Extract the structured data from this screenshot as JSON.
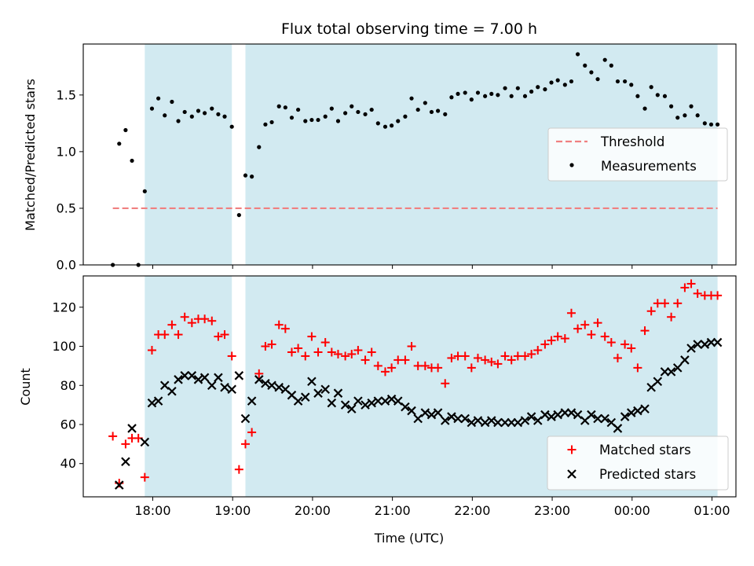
{
  "chart_data": {
    "title": "Flux total observing time = 7.00 h",
    "xlabel": "Time (UTC)",
    "x_unit": "hours (UTC clock, values past 24 are after midnight)",
    "x_range": [
      17.13,
      25.3
    ],
    "x_ticks": [
      {
        "value": 18,
        "label": "18:00"
      },
      {
        "value": 19,
        "label": "19:00"
      },
      {
        "value": 20,
        "label": "20:00"
      },
      {
        "value": 21,
        "label": "21:00"
      },
      {
        "value": 22,
        "label": "22:00"
      },
      {
        "value": 23,
        "label": "23:00"
      },
      {
        "value": 24,
        "label": "00:00"
      },
      {
        "value": 25,
        "label": "01:00"
      }
    ],
    "observing_windows": [
      [
        17.9,
        18.99
      ],
      [
        19.16,
        25.07
      ]
    ],
    "colors": {
      "window": "#add8e6",
      "threshold": "#f08080",
      "measurements": "#000000",
      "matched": "#ff0000",
      "predicted": "#000000"
    },
    "panels": [
      {
        "type": "scatter",
        "ylabel": "Matched/Predicted stars",
        "ylim": [
          0,
          1.95
        ],
        "y_ticks": [
          "0.0",
          "0.5",
          "1.0",
          "1.5"
        ],
        "legend_position": "center-right",
        "threshold": {
          "name": "Threshold",
          "value": 0.5,
          "x_range": [
            17.5,
            25.07
          ]
        },
        "series": [
          {
            "name": "Measurements",
            "marker": "dot",
            "x": [
              17.5,
              17.58,
              17.66,
              17.74,
              17.82,
              17.9,
              17.99,
              18.07,
              18.15,
              18.24,
              18.32,
              18.4,
              18.49,
              18.57,
              18.65,
              18.74,
              18.82,
              18.9,
              18.99,
              19.08,
              19.16,
              19.24,
              19.33,
              19.41,
              19.49,
              19.58,
              19.66,
              19.74,
              19.82,
              19.91,
              19.99,
              20.07,
              20.16,
              20.24,
              20.32,
              20.41,
              20.49,
              20.57,
              20.66,
              20.74,
              20.82,
              20.91,
              20.99,
              21.07,
              21.16,
              21.24,
              21.32,
              21.41,
              21.49,
              21.57,
              21.66,
              21.74,
              21.82,
              21.91,
              21.99,
              22.07,
              22.16,
              22.24,
              22.32,
              22.41,
              22.49,
              22.57,
              22.66,
              22.74,
              22.82,
              22.91,
              22.99,
              23.07,
              23.16,
              23.24,
              23.32,
              23.41,
              23.49,
              23.57,
              23.66,
              23.74,
              23.82,
              23.91,
              23.99,
              24.07,
              24.16,
              24.24,
              24.32,
              24.41,
              24.49,
              24.57,
              24.66,
              24.74,
              24.82,
              24.91,
              24.99,
              25.07
            ],
            "y": [
              0.0,
              1.07,
              1.19,
              0.92,
              0.0,
              0.65,
              1.38,
              1.47,
              1.32,
              1.44,
              1.27,
              1.35,
              1.31,
              1.36,
              1.34,
              1.38,
              1.33,
              1.31,
              1.22,
              0.44,
              0.79,
              0.78,
              1.04,
              1.24,
              1.26,
              1.4,
              1.39,
              1.3,
              1.37,
              1.27,
              1.28,
              1.28,
              1.31,
              1.38,
              1.27,
              1.34,
              1.4,
              1.35,
              1.33,
              1.37,
              1.25,
              1.22,
              1.23,
              1.27,
              1.31,
              1.47,
              1.37,
              1.43,
              1.35,
              1.36,
              1.33,
              1.48,
              1.51,
              1.52,
              1.46,
              1.52,
              1.49,
              1.51,
              1.5,
              1.56,
              1.49,
              1.56,
              1.49,
              1.53,
              1.57,
              1.55,
              1.61,
              1.63,
              1.59,
              1.62,
              1.86,
              1.76,
              1.7,
              1.64,
              1.81,
              1.76,
              1.62,
              1.62,
              1.59,
              1.49,
              1.38,
              1.57,
              1.5,
              1.49,
              1.4,
              1.3,
              1.32,
              1.4,
              1.32,
              1.25,
              1.24,
              1.24
            ]
          }
        ]
      },
      {
        "type": "scatter",
        "ylabel": "Count",
        "ylim": [
          23,
          136
        ],
        "y_ticks": [
          "40",
          "60",
          "80",
          "100",
          "120"
        ],
        "legend_position": "lower-right",
        "series": [
          {
            "name": "Matched stars",
            "marker": "plus",
            "x": [
              17.5,
              17.58,
              17.66,
              17.74,
              17.82,
              17.9,
              17.99,
              18.07,
              18.15,
              18.24,
              18.32,
              18.4,
              18.49,
              18.57,
              18.65,
              18.74,
              18.82,
              18.9,
              18.99,
              19.08,
              19.16,
              19.24,
              19.33,
              19.41,
              19.49,
              19.58,
              19.66,
              19.74,
              19.82,
              19.91,
              19.99,
              20.07,
              20.16,
              20.24,
              20.32,
              20.41,
              20.49,
              20.57,
              20.66,
              20.74,
              20.82,
              20.91,
              20.99,
              21.07,
              21.16,
              21.24,
              21.32,
              21.41,
              21.49,
              21.57,
              21.66,
              21.74,
              21.82,
              21.91,
              21.99,
              22.07,
              22.16,
              22.24,
              22.32,
              22.41,
              22.49,
              22.57,
              22.66,
              22.74,
              22.82,
              22.91,
              22.99,
              23.07,
              23.16,
              23.24,
              23.32,
              23.41,
              23.49,
              23.57,
              23.66,
              23.74,
              23.82,
              23.91,
              23.99,
              24.07,
              24.16,
              24.24,
              24.32,
              24.41,
              24.49,
              24.57,
              24.66,
              24.74,
              24.82,
              24.91,
              24.99,
              25.07
            ],
            "y": [
              54,
              30,
              50,
              53,
              53,
              33,
              98,
              106,
              106,
              111,
              106,
              115,
              112,
              114,
              114,
              113,
              105,
              106,
              95,
              37,
              50,
              56,
              86,
              100,
              101,
              111,
              109,
              97,
              99,
              95,
              105,
              97,
              102,
              97,
              96,
              95,
              96,
              98,
              93,
              97,
              90,
              87,
              89,
              93,
              93,
              100,
              90,
              90,
              89,
              89,
              81,
              94,
              95,
              95,
              89,
              94,
              93,
              92,
              91,
              95,
              93,
              95,
              95,
              96,
              98,
              101,
              103,
              105,
              104,
              117,
              109,
              111,
              106,
              112,
              105,
              102,
              94,
              101,
              99,
              89,
              108,
              118,
              122,
              122,
              115,
              122,
              130,
              132,
              127,
              126,
              126,
              126
            ],
            "extra_points": [
              {
                "x": 17.58,
                "y": 30
              }
            ]
          },
          {
            "name": "Predicted stars",
            "marker": "x",
            "x": [
              17.58,
              17.66,
              17.74,
              17.9,
              17.99,
              18.07,
              18.15,
              18.24,
              18.32,
              18.4,
              18.49,
              18.57,
              18.65,
              18.74,
              18.82,
              18.9,
              18.99,
              19.08,
              19.16,
              19.24,
              19.33,
              19.41,
              19.49,
              19.58,
              19.66,
              19.74,
              19.82,
              19.91,
              19.99,
              20.07,
              20.16,
              20.24,
              20.32,
              20.41,
              20.49,
              20.57,
              20.66,
              20.74,
              20.82,
              20.91,
              20.99,
              21.07,
              21.16,
              21.24,
              21.32,
              21.41,
              21.49,
              21.57,
              21.66,
              21.74,
              21.82,
              21.91,
              21.99,
              22.07,
              22.16,
              22.24,
              22.32,
              22.41,
              22.49,
              22.57,
              22.66,
              22.74,
              22.82,
              22.91,
              22.99,
              23.07,
              23.16,
              23.24,
              23.32,
              23.41,
              23.49,
              23.57,
              23.66,
              23.74,
              23.82,
              23.91,
              23.99,
              24.07,
              24.16,
              24.24,
              24.32,
              24.41,
              24.49,
              24.57,
              24.66,
              24.74,
              24.82,
              24.91,
              24.99,
              25.07
            ],
            "y": [
              29,
              41,
              58,
              51,
              71,
              72,
              80,
              77,
              83,
              85,
              85,
              83,
              84,
              80,
              84,
              79,
              78,
              85,
              63,
              72,
              83,
              81,
              80,
              79,
              78,
              75,
              72,
              74,
              82,
              76,
              78,
              71,
              76,
              70,
              68,
              72,
              70,
              71,
              72,
              72,
              73,
              72,
              69,
              67,
              63,
              66,
              65,
              66,
              62,
              64,
              63,
              63,
              61,
              62,
              61,
              62,
              61,
              61,
              61,
              61,
              62,
              64,
              62,
              65,
              64,
              65,
              66,
              66,
              65,
              62,
              65,
              63,
              63,
              61,
              58,
              64,
              66,
              67,
              68,
              79,
              82,
              87,
              87,
              89,
              93,
              99,
              101,
              101,
              102,
              102
            ]
          }
        ]
      }
    ]
  }
}
